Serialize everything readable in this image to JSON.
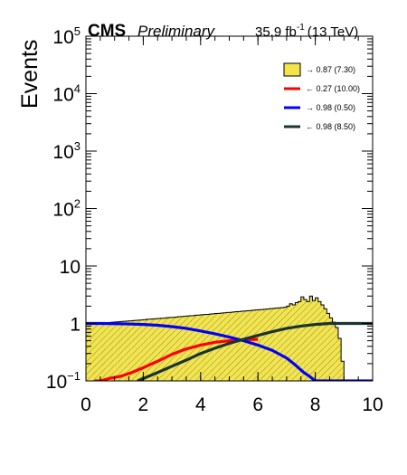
{
  "header": {
    "experiment": "CMS",
    "status": "Preliminary",
    "lumi_value": "35.9 fb",
    "lumi_exponent": "-1",
    "energy": "(13 TeV)"
  },
  "chart_data": {
    "type": "area",
    "title": "",
    "xlabel": "",
    "ylabel": "Events",
    "xlim": [
      0,
      10
    ],
    "ylim": [
      0.1,
      100000
    ],
    "yscale": "log",
    "grid": false,
    "legend_position": "top-right",
    "x_ticks": [
      {
        "value": 0,
        "label": "0"
      },
      {
        "value": 2,
        "label": "2"
      },
      {
        "value": 4,
        "label": "4"
      },
      {
        "value": 6,
        "label": "6"
      },
      {
        "value": 8,
        "label": "8"
      },
      {
        "value": 10,
        "label": "10"
      }
    ],
    "y_ticks": [
      {
        "value": 0.1,
        "base": "10",
        "exp": "−1"
      },
      {
        "value": 1,
        "base": "1",
        "exp": ""
      },
      {
        "value": 10,
        "base": "10",
        "exp": ""
      },
      {
        "value": 100,
        "base": "10",
        "exp": "2"
      },
      {
        "value": 1000,
        "base": "10",
        "exp": "3"
      },
      {
        "value": 10000,
        "base": "10",
        "exp": "4"
      },
      {
        "value": 100000,
        "base": "10",
        "exp": "5"
      }
    ],
    "histogram": {
      "name": "→ 0.87 (7.30)",
      "color": "#f2e44a",
      "hatch_color": "#8c8a3a",
      "edges_step": 0.1,
      "values": [
        1.0,
        1.0,
        1.0,
        1.0,
        1.0,
        1.01,
        1.02,
        1.03,
        1.04,
        1.05,
        1.06,
        1.07,
        1.08,
        1.09,
        1.1,
        1.11,
        1.12,
        1.13,
        1.14,
        1.15,
        1.16,
        1.18,
        1.19,
        1.2,
        1.21,
        1.22,
        1.23,
        1.24,
        1.26,
        1.27,
        1.28,
        1.29,
        1.31,
        1.32,
        1.33,
        1.35,
        1.36,
        1.37,
        1.39,
        1.4,
        1.42,
        1.43,
        1.44,
        1.46,
        1.47,
        1.49,
        1.5,
        1.52,
        1.53,
        1.55,
        1.56,
        1.58,
        1.6,
        1.61,
        1.63,
        1.65,
        1.66,
        1.68,
        1.7,
        1.72,
        1.73,
        1.75,
        1.77,
        1.79,
        1.81,
        1.83,
        1.85,
        1.87,
        1.89,
        1.91,
        2.0,
        2.2,
        2.1,
        2.3,
        2.4,
        2.9,
        2.6,
        2.4,
        3.0,
        2.5,
        2.8,
        2.4,
        2.1,
        1.8,
        1.5,
        1.25,
        1.05,
        0.85,
        0.55,
        0.22
      ]
    },
    "series": [
      {
        "name": "← 0.27 (10.00)",
        "color": "#ff0000",
        "x": [
          0.3,
          0.5,
          0.8,
          1.2,
          1.6,
          2.0,
          2.5,
          3.0,
          3.5,
          4.0,
          4.5,
          5.0,
          5.5,
          6.0
        ],
        "y": [
          0.1,
          0.1,
          0.11,
          0.12,
          0.14,
          0.17,
          0.22,
          0.29,
          0.36,
          0.42,
          0.47,
          0.5,
          0.52,
          0.53
        ]
      },
      {
        "name": "→ 0.98 (0.50)",
        "color": "#0000ff",
        "x": [
          0.0,
          0.5,
          1.0,
          1.5,
          2.0,
          2.5,
          3.0,
          3.5,
          4.0,
          4.5,
          5.0,
          5.5,
          6.0,
          6.5,
          7.0,
          7.3,
          7.6,
          7.8,
          8.0,
          8.2,
          9.0,
          10.0
        ],
        "y": [
          1.0,
          1.0,
          0.99,
          0.98,
          0.96,
          0.93,
          0.88,
          0.82,
          0.74,
          0.66,
          0.58,
          0.5,
          0.42,
          0.34,
          0.25,
          0.19,
          0.14,
          0.12,
          0.1,
          0.1,
          0.1,
          0.1
        ]
      },
      {
        "name": "← 0.98 (8.50)",
        "color": "#1a3333",
        "x": [
          1.8,
          2.0,
          2.5,
          3.0,
          3.5,
          4.0,
          4.5,
          5.0,
          5.5,
          6.0,
          6.5,
          7.0,
          7.5,
          8.0,
          8.5,
          9.0,
          10.0
        ],
        "y": [
          0.1,
          0.11,
          0.14,
          0.18,
          0.23,
          0.3,
          0.37,
          0.45,
          0.53,
          0.62,
          0.72,
          0.82,
          0.9,
          0.96,
          1.0,
          1.0,
          1.0
        ]
      }
    ]
  }
}
